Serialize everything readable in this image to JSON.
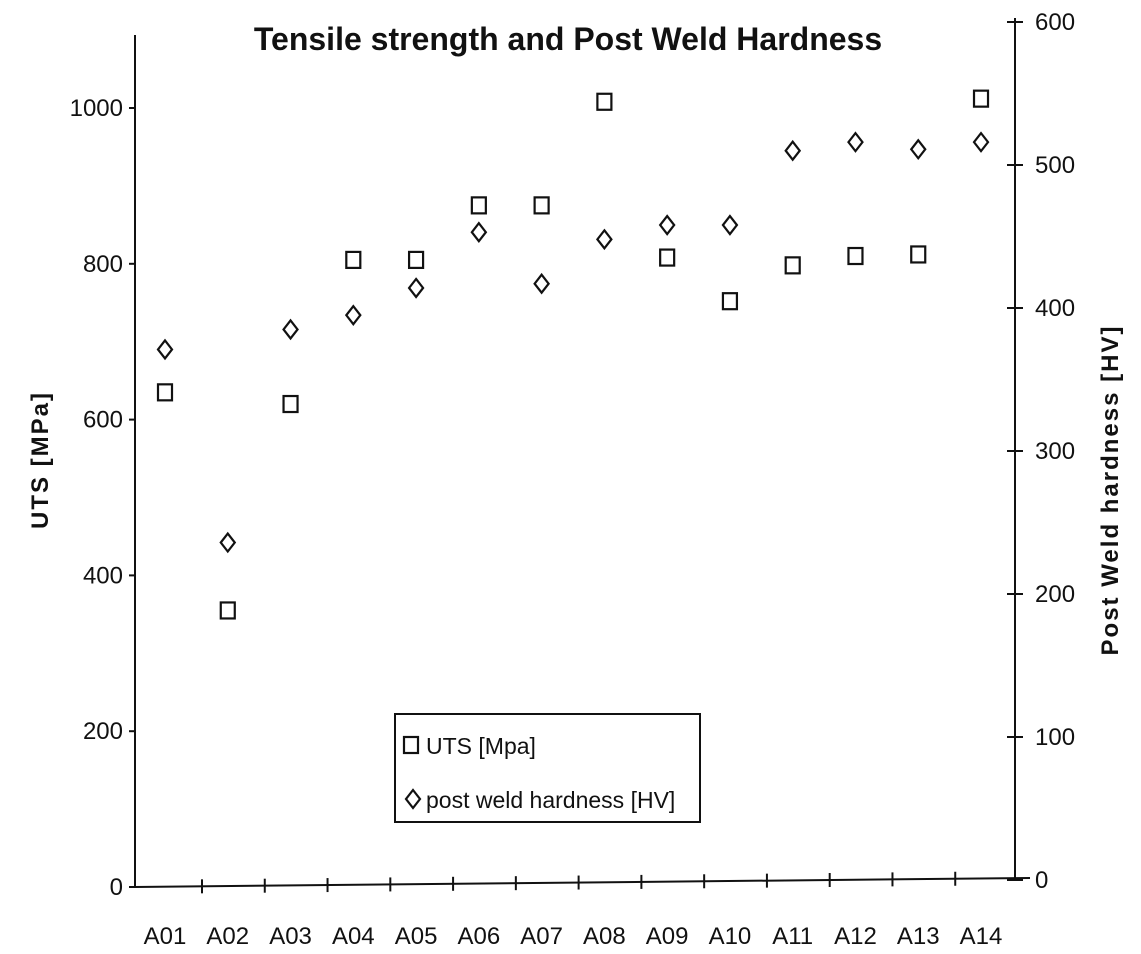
{
  "chart_data": {
    "type": "scatter",
    "title": "Tensile strength and Post Weld Hardness",
    "categories": [
      "A01",
      "A02",
      "A03",
      "A04",
      "A05",
      "A06",
      "A07",
      "A08",
      "A09",
      "A10",
      "A11",
      "A12",
      "A13",
      "A14"
    ],
    "y_left": {
      "label": "UTS [MPa]",
      "range": [
        0,
        1100
      ],
      "ticks": [
        0,
        200,
        400,
        600,
        800,
        1000
      ]
    },
    "y_right": {
      "label": "Post Weld hardness [HV]",
      "range": [
        0,
        600
      ],
      "ticks": [
        0,
        100,
        200,
        300,
        400,
        500,
        600
      ]
    },
    "grid": false,
    "legend_position": "bottom-center",
    "series": [
      {
        "name": "UTS [Mpa]",
        "axis": "left",
        "marker": "square",
        "values": [
          635,
          355,
          620,
          805,
          805,
          875,
          875,
          1008,
          808,
          752,
          798,
          810,
          812,
          1012
        ]
      },
      {
        "name": "post weld hardness [HV]",
        "axis": "right",
        "marker": "diamond",
        "values": [
          371,
          236,
          385,
          395,
          414,
          453,
          417,
          448,
          458,
          458,
          510,
          516,
          511,
          516
        ]
      }
    ]
  }
}
